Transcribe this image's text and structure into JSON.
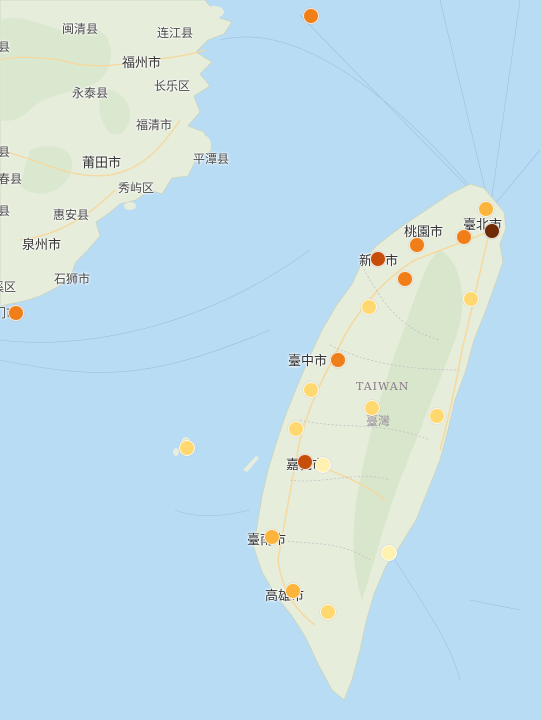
{
  "labels": {
    "mainland": [
      {
        "id": "minqing",
        "text": "闽清县"
      },
      {
        "id": "lianjiang",
        "text": "连江县"
      },
      {
        "id": "fuzhou",
        "text": "福州市"
      },
      {
        "id": "changle",
        "text": "长乐区"
      },
      {
        "id": "yongtai",
        "text": "永泰县"
      },
      {
        "id": "fuqing",
        "text": "福清市"
      },
      {
        "id": "putian",
        "text": "莆田市"
      },
      {
        "id": "pingtan",
        "text": "平潭县"
      },
      {
        "id": "xiuyu",
        "text": "秀屿区"
      },
      {
        "id": "huian",
        "text": "惠安县"
      },
      {
        "id": "quanzhou",
        "text": "泉州市"
      },
      {
        "id": "shishi",
        "text": "石狮市"
      },
      {
        "id": "edge1",
        "text": "县"
      },
      {
        "id": "edge2",
        "text": "县"
      },
      {
        "id": "edge3",
        "text": "春县"
      },
      {
        "id": "edge4",
        "text": "县"
      },
      {
        "id": "edge5",
        "text": "溪区"
      },
      {
        "id": "edge6",
        "text": "门市"
      }
    ],
    "taiwan": [
      {
        "id": "taipei",
        "text": "臺北市"
      },
      {
        "id": "taoyuan",
        "text": "桃園市"
      },
      {
        "id": "hsinchu",
        "text": "新竹市"
      },
      {
        "id": "taichung",
        "text": "臺中市"
      },
      {
        "id": "taiwan_en",
        "text": "TAIWAN"
      },
      {
        "id": "taiwan_zh",
        "text": "臺灣"
      },
      {
        "id": "chiayi",
        "text": "嘉義市"
      },
      {
        "id": "tainan",
        "text": "臺南市"
      },
      {
        "id": "kaohsiung",
        "text": "高雄市"
      }
    ]
  },
  "colors": {
    "sea": "#b9dcf5",
    "land": "#e6eddb",
    "level_1": "#fff2b0",
    "level_2": "#ffd970",
    "level_3": "#fdb43c",
    "level_4": "#f07f1a",
    "level_5": "#c64e0a",
    "level_6": "#6f2a08"
  },
  "markers": [
    {
      "level": 4
    },
    {
      "level": 4
    },
    {
      "level": 3
    },
    {
      "level": 6
    },
    {
      "level": 4
    },
    {
      "level": 4
    },
    {
      "level": 5
    },
    {
      "level": 4
    },
    {
      "level": 2
    },
    {
      "level": 2
    },
    {
      "level": 4
    },
    {
      "level": 2
    },
    {
      "level": 2
    },
    {
      "level": 2
    },
    {
      "level": 2
    },
    {
      "level": 1
    },
    {
      "level": 5
    },
    {
      "level": 2
    },
    {
      "level": 3
    },
    {
      "level": 1
    },
    {
      "level": 3
    },
    {
      "level": 2
    }
  ]
}
